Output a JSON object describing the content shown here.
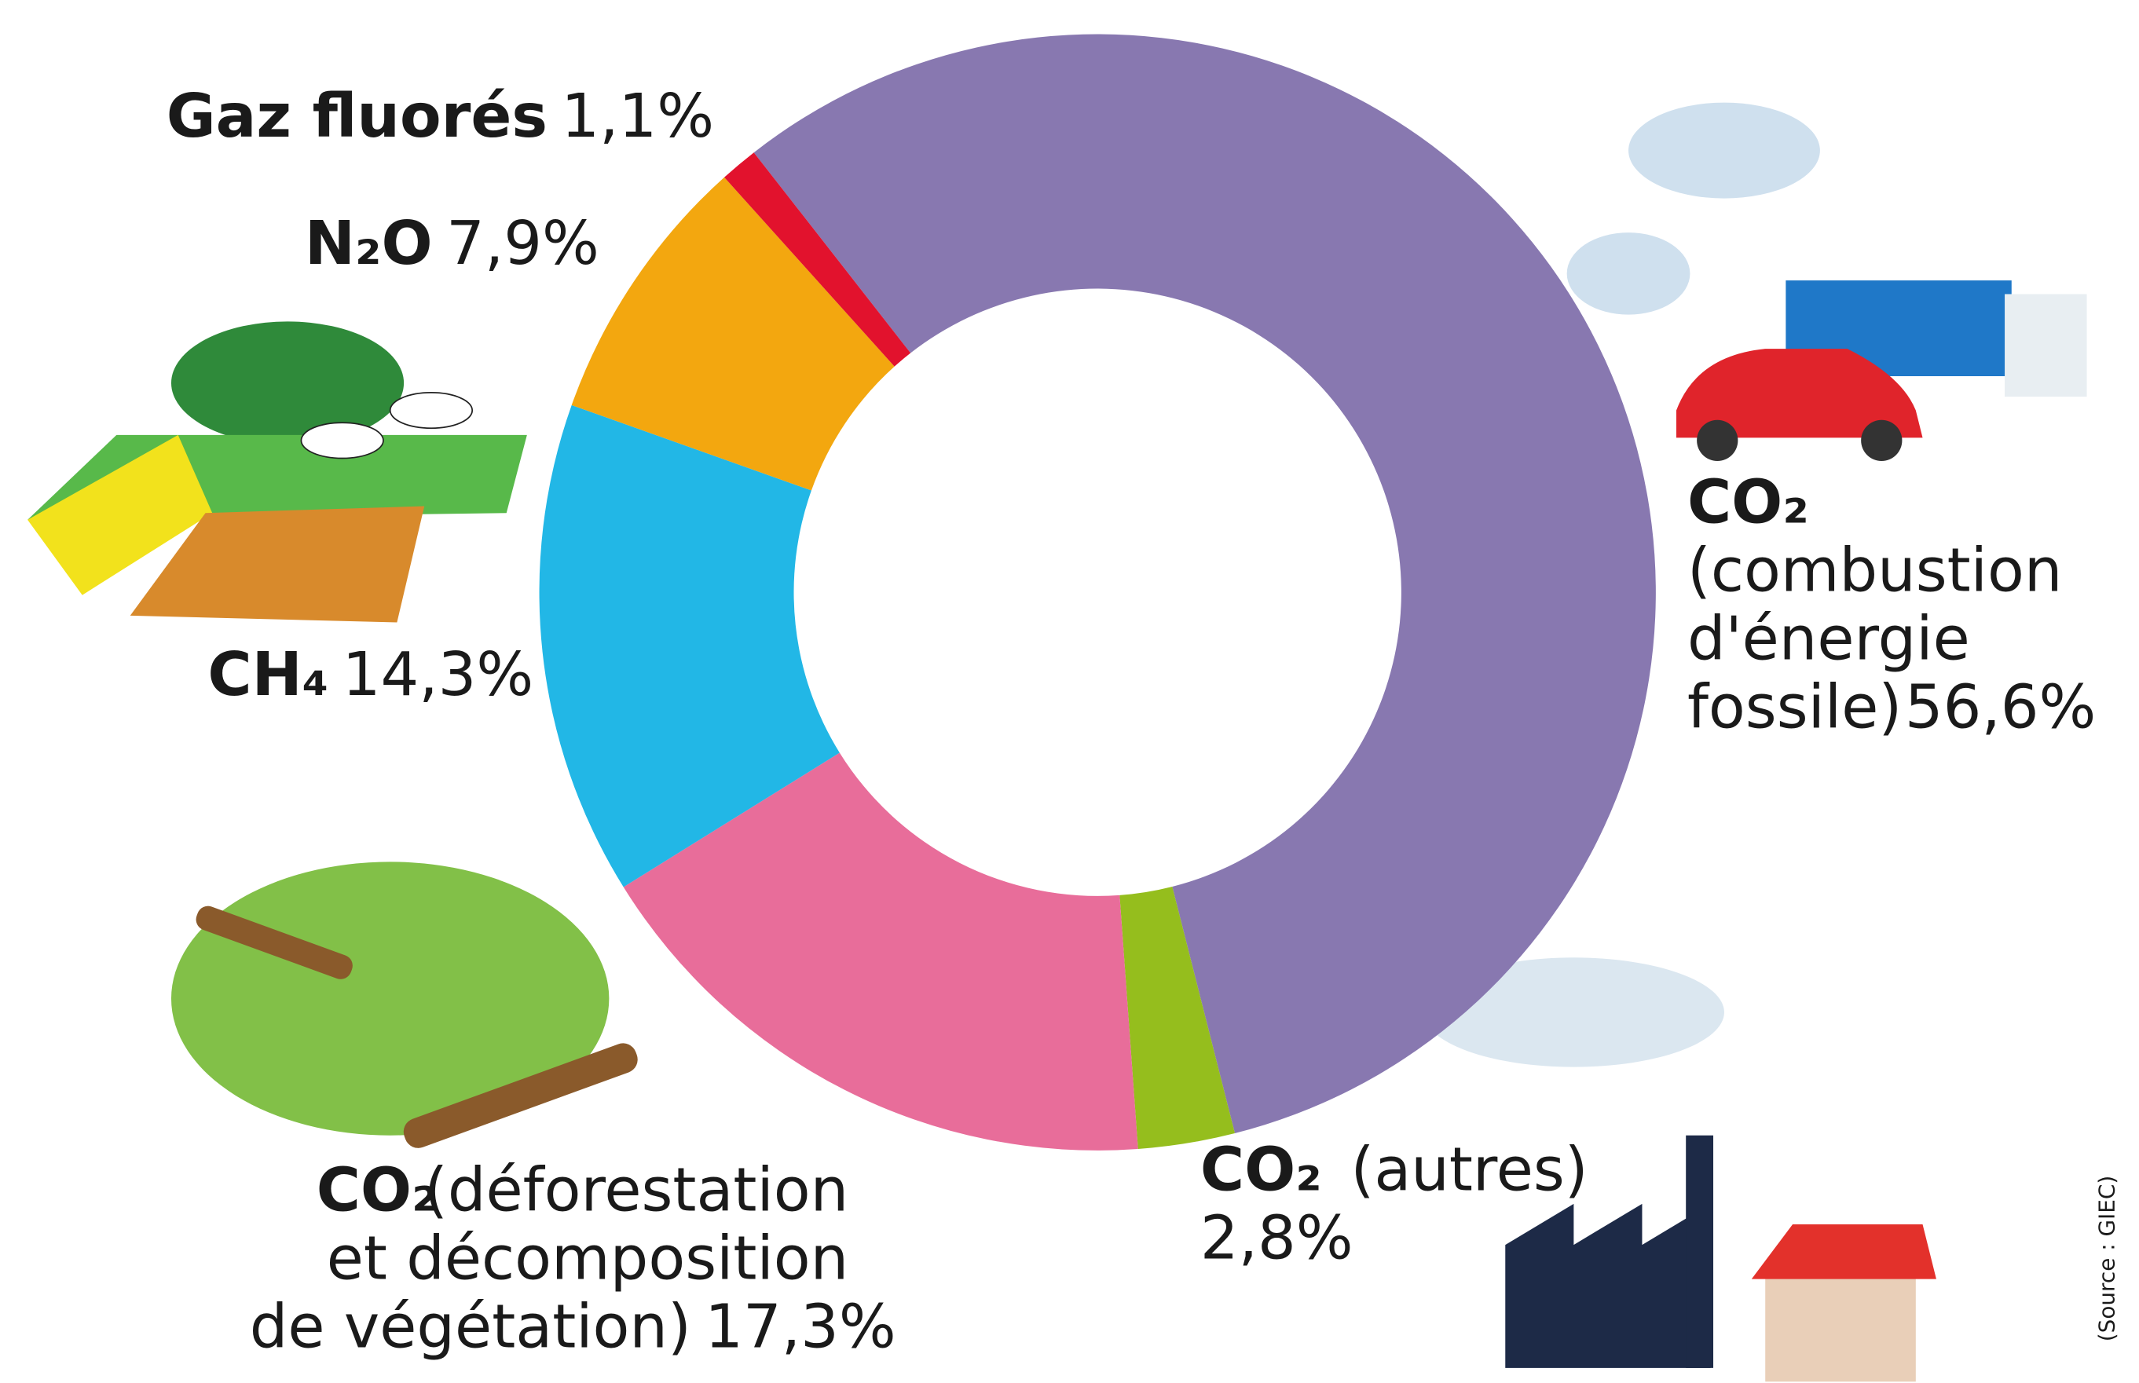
{
  "chart_data": {
    "type": "donut",
    "categories": [
      {
        "gas": "CO₂",
        "detail": [
          "(combustion",
          "d'énergie",
          "fossile)"
        ]
      },
      {
        "gas": "CO₂",
        "detail": [
          "(autres)"
        ]
      },
      {
        "gas": "CO₂",
        "detail": [
          "(déforestation",
          "et décomposition",
          "de végétation)"
        ]
      },
      {
        "gas": "CH₄",
        "detail": []
      },
      {
        "gas": "N₂O",
        "detail": []
      },
      {
        "gas": "Gaz fluorés",
        "detail": []
      }
    ],
    "values": [
      56.6,
      2.8,
      17.3,
      14.3,
      7.9,
      1.1
    ],
    "value_labels": [
      "56,6%",
      "2,8%",
      "17,3%",
      "14,3%",
      "7,9%",
      "1,1%"
    ],
    "colors": [
      "#8878b0",
      "#95be1d",
      "#e86d9a",
      "#22b7e6",
      "#f3a70f",
      "#e2122d"
    ],
    "source": "(Source : GIEC)"
  }
}
